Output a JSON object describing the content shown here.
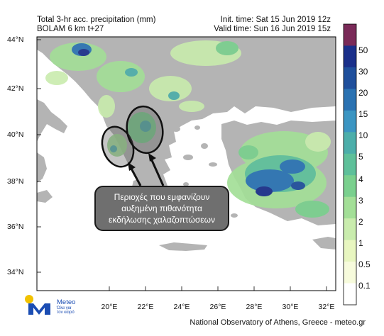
{
  "header": {
    "line1_left": "Total 3-hr acc. precipitation (mm)",
    "line2_left": "BOLAM 6 km t+27",
    "line1_right": "Init. time: Sat 15 Jun 2019 12z",
    "line2_right": "Valid time: Sun 16 Jun 2019 15z"
  },
  "axes": {
    "lat_labels": [
      "44°N",
      "42°N",
      "40°N",
      "38°N",
      "36°N",
      "34°N"
    ],
    "lon_labels": [
      "20°E",
      "22°E",
      "24°E",
      "26°E",
      "28°E",
      "30°E",
      "32°E"
    ]
  },
  "colorbar": {
    "labels": [
      "50",
      "30",
      "20",
      "15",
      "10",
      "5",
      "4",
      "3",
      "2",
      "1",
      "0.5",
      "0.1"
    ],
    "colors": [
      "#7a2a58",
      "#1a2f8a",
      "#1f4f9c",
      "#2a72b2",
      "#3b95c2",
      "#4caeaa",
      "#5ec09a",
      "#7ad08e",
      "#a3df97",
      "#c9ecad",
      "#e8f6c0",
      "#f7fbdc",
      "#ffffff"
    ]
  },
  "callout": {
    "line1": "Περιοχές που εμφανίζουν",
    "line2": "αυξημένη πιθανότητα",
    "line3": "εκδήλωσης χαλαζοπτώσεων"
  },
  "logo": {
    "name": "Meteo",
    "tagline1": "Όλα για",
    "tagline2": "τον καιρό"
  },
  "footer": "National Observatory of Athens, Greece - meteo.gr",
  "colors": {
    "land": "#b4b4b4",
    "sea": "#ffffff",
    "light_precip": "#c9ecad",
    "medium_precip": "#7ad08e",
    "heavy_precip": "#2a72b2"
  }
}
